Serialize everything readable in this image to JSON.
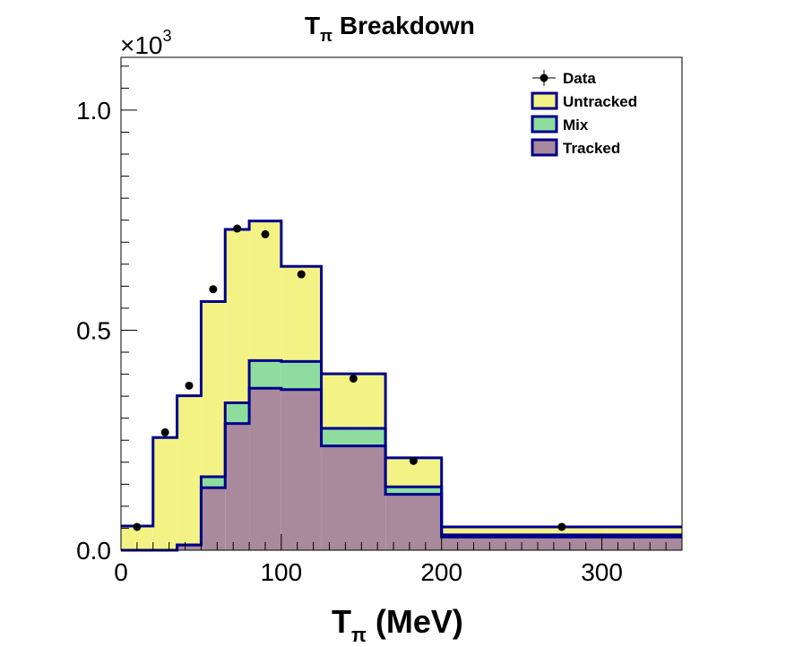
{
  "chart_data": {
    "type": "bar",
    "title": "T",
    "title_subscript": "π",
    "title_suffix": "Breakdown",
    "xlabel": "T",
    "xlabel_subscript": "π",
    "xlabel_suffix": "(MeV)",
    "y_multiplier": "×10",
    "y_multiplier_exp": "3",
    "xlim": [
      0,
      350
    ],
    "ylim": [
      0,
      1.12
    ],
    "x_ticks": [
      0,
      100,
      200,
      300
    ],
    "x_tick_labels": [
      "0",
      "100",
      "200",
      "300"
    ],
    "y_ticks": [
      0.0,
      0.5,
      1.0
    ],
    "y_tick_labels": [
      "0.0",
      "0.5",
      "1.0"
    ],
    "grid": false,
    "legend_position": "top-right",
    "bin_edges": [
      0,
      20,
      35,
      50,
      65,
      80,
      100,
      125,
      165,
      200,
      350
    ],
    "stack": [
      {
        "name": "Tracked",
        "color": "#a98a9c",
        "values": [
          0.0,
          0.0,
          0.012,
          0.142,
          0.288,
          0.368,
          0.365,
          0.237,
          0.127,
          0.03
        ]
      },
      {
        "name": "Mix",
        "color": "#8edd9f",
        "values": [
          0.0,
          0.0,
          0.0,
          0.025,
          0.047,
          0.063,
          0.064,
          0.04,
          0.017,
          0.005
        ]
      },
      {
        "name": "Untracked",
        "color": "#f3f385",
        "values": [
          0.055,
          0.256,
          0.339,
          0.398,
          0.394,
          0.317,
          0.216,
          0.124,
          0.066,
          0.018
        ]
      }
    ],
    "data_series": {
      "name": "Data",
      "x": [
        10,
        27.5,
        42.5,
        57.5,
        72.5,
        90,
        112.5,
        145,
        182.5,
        275
      ],
      "y": [
        0.053,
        0.268,
        0.374,
        0.593,
        0.731,
        0.718,
        0.627,
        0.39,
        0.203,
        0.053
      ]
    },
    "legend": [
      "Data",
      "Untracked",
      "Mix",
      "Tracked"
    ],
    "outline_color": "#00008b"
  }
}
